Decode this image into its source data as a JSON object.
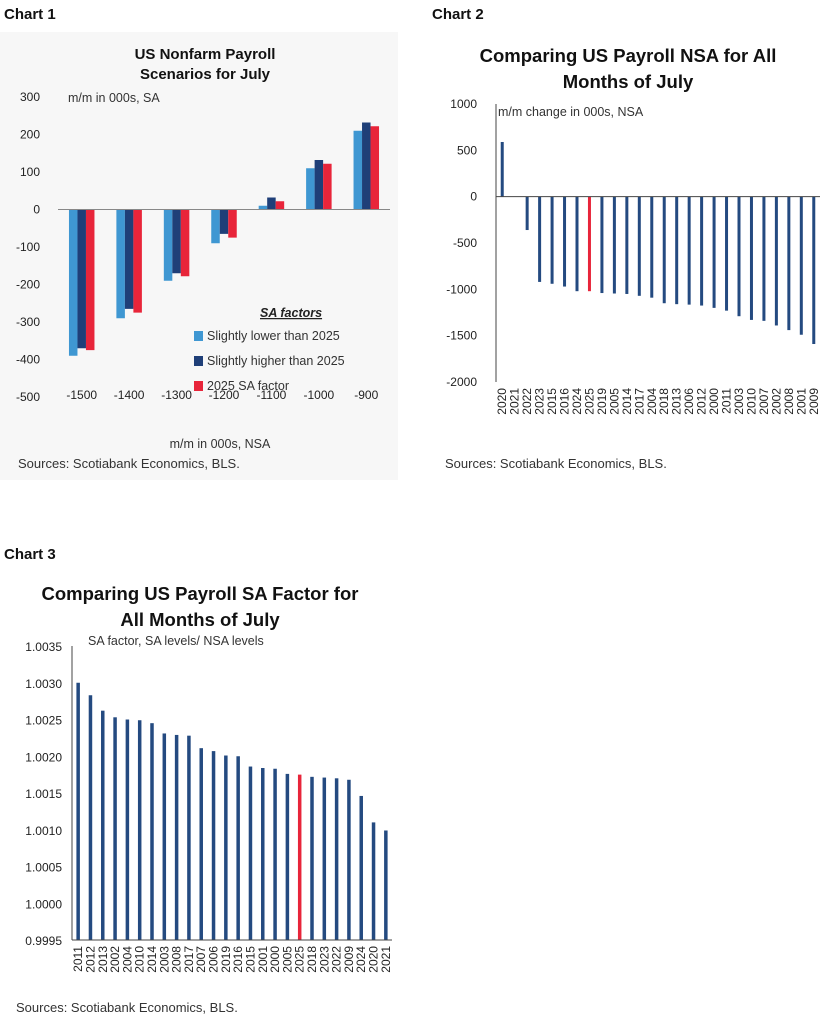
{
  "labels": {
    "chart1": "Chart 1",
    "chart2": "Chart 2",
    "chart3": "Chart 3"
  },
  "colors": {
    "light_blue": "#3f97d2",
    "dark_blue": "#1f3f78",
    "red": "#e8253a",
    "navy": "#244a80"
  },
  "chart_data": [
    {
      "type": "bar",
      "title": "US Nonfarm Payroll",
      "subtitle": "Scenarios for July",
      "ylabel": "m/m in 000s, SA",
      "xlabel": "m/m in 000s, NSA",
      "categories": [
        "-1500",
        "-1400",
        "-1300",
        "-1200",
        "-1100",
        "-1000",
        "-900"
      ],
      "series": [
        {
          "name": "Slightly lower than 2025",
          "values": [
            -390,
            -290,
            -190,
            -90,
            10,
            110,
            210
          ]
        },
        {
          "name": "Slightly higher than 2025",
          "values": [
            -370,
            -265,
            -170,
            -65,
            32,
            132,
            232
          ]
        },
        {
          "name": "2025 SA factor",
          "values": [
            -375,
            -275,
            -178,
            -75,
            22,
            122,
            222
          ]
        }
      ],
      "legend_title": "SA factors",
      "legend_position": "bottom-right",
      "ylim": [
        -500,
        300
      ],
      "yticks": [
        300,
        200,
        100,
        0,
        -100,
        -200,
        -300,
        -400,
        -500
      ],
      "source": "Sources: Scotiabank Economics, BLS."
    },
    {
      "type": "bar",
      "title": "Comparing US Payroll NSA for All",
      "subtitle": "Months of July",
      "ylabel": "m/m change in 000s, NSA",
      "categories": [
        "2020",
        "2021",
        "2022",
        "2023",
        "2015",
        "2016",
        "2024",
        "2025",
        "2019",
        "2005",
        "2014",
        "2017",
        "2004",
        "2018",
        "2013",
        "2006",
        "2012",
        "2000",
        "2011",
        "2003",
        "2010",
        "2007",
        "2002",
        "2008",
        "2001",
        "2009"
      ],
      "values": [
        590,
        0,
        -360,
        -920,
        -940,
        -970,
        -1020,
        -1020,
        -1040,
        -1045,
        -1050,
        -1070,
        -1090,
        -1150,
        -1160,
        -1165,
        -1175,
        -1200,
        -1230,
        -1290,
        -1330,
        -1340,
        -1390,
        -1440,
        -1490,
        -1590
      ],
      "highlight": "2025",
      "ylim": [
        -2000,
        1000
      ],
      "yticks": [
        1000,
        500,
        0,
        -500,
        -1000,
        -1500,
        -2000
      ],
      "source": "Sources: Scotiabank Economics, BLS."
    },
    {
      "type": "bar",
      "title": "Comparing US Payroll SA Factor for",
      "subtitle": "All Months of July",
      "ylabel": "SA factor, SA levels/ NSA levels",
      "categories": [
        "2011",
        "2012",
        "2013",
        "2002",
        "2004",
        "2010",
        "2014",
        "2003",
        "2008",
        "2017",
        "2007",
        "2006",
        "2019",
        "2016",
        "2015",
        "2001",
        "2000",
        "2005",
        "2025",
        "2018",
        "2023",
        "2022",
        "2009",
        "2024",
        "2020",
        "2021"
      ],
      "values": [
        1.003,
        1.00283,
        1.00262,
        1.00253,
        1.0025,
        1.00249,
        1.00245,
        1.00231,
        1.00229,
        1.00228,
        1.00211,
        1.00207,
        1.00201,
        1.002,
        1.00186,
        1.00184,
        1.00183,
        1.00176,
        1.00175,
        1.00172,
        1.00171,
        1.0017,
        1.00168,
        1.00146,
        1.0011,
        1.00099
      ],
      "highlight": "2025",
      "ylim": [
        0.9995,
        1.0035
      ],
      "yticks": [
        "1.0035",
        "1.0030",
        "1.0025",
        "1.0020",
        "1.0015",
        "1.0010",
        "1.0005",
        "1.0000",
        "0.9995"
      ],
      "source": "Sources: Scotiabank Economics, BLS."
    }
  ]
}
